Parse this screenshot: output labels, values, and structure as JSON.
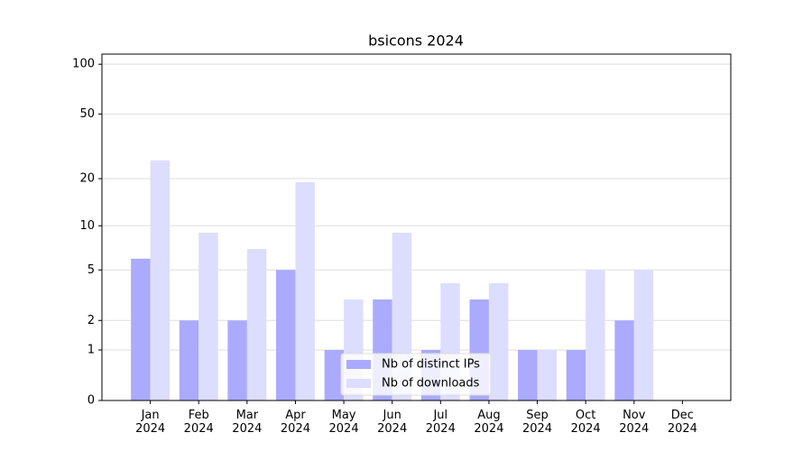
{
  "chart_data": {
    "type": "bar",
    "title": "bsicons 2024",
    "categories": [
      "Jan\n2024",
      "Feb\n2024",
      "Mar\n2024",
      "Apr\n2024",
      "May\n2024",
      "Jun\n2024",
      "Jul\n2024",
      "Aug\n2024",
      "Sep\n2024",
      "Oct\n2024",
      "Nov\n2024",
      "Dec\n2024"
    ],
    "series": [
      {
        "name": "Nb of distinct IPs",
        "color": "#aaaaff",
        "values": [
          6,
          2,
          2,
          5,
          1,
          3,
          1,
          3,
          1,
          1,
          2,
          0
        ]
      },
      {
        "name": "Nb of downloads",
        "color": "#ddddff",
        "values": [
          26,
          9,
          7,
          19,
          3,
          9,
          4,
          4,
          1,
          5,
          5,
          0
        ]
      }
    ],
    "yscale": "log1p",
    "ylim": [
      0,
      115
    ],
    "yticks": [
      0,
      1,
      2,
      5,
      10,
      20,
      50,
      100
    ],
    "grid": true,
    "legend": "lower center"
  }
}
